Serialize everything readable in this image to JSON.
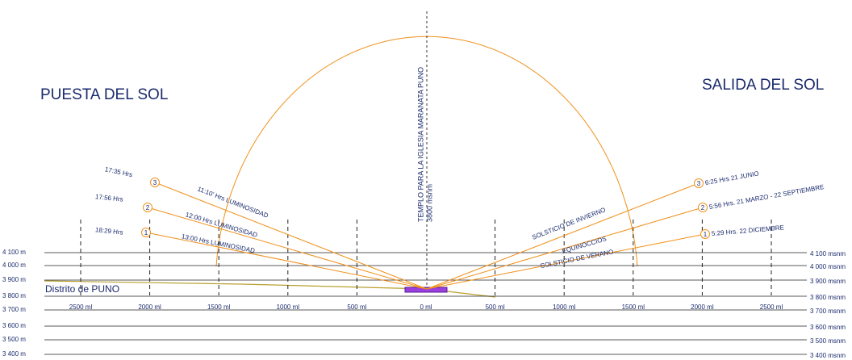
{
  "header": {
    "left_title": "PUESTA DEL SOL",
    "right_title": "SALIDA DEL SOL"
  },
  "center": {
    "label": "TEMPLO PARA LA IGLESIA MARANATA PUNO",
    "elevation": "3800 msnm"
  },
  "district": "Distrito de PUNO",
  "levels": {
    "left": [
      "4 100 m",
      "4 000 m",
      "3 900 m",
      "3 800 m",
      "3 700 m",
      "3 600 m",
      "3 500 m",
      "3 400 m"
    ],
    "right": [
      "4 100 msnm",
      "4 000 msnm",
      "3 900 msnm",
      "3 800 msnm",
      "3 700 msnm",
      "3 600 msnm",
      "3 500 msnm",
      "3 400 msnm"
    ]
  },
  "distances": [
    "2500 ml",
    "2000 ml",
    "1500 ml",
    "1000 ml",
    "500 ml",
    "0 ml",
    "500 ml",
    "1000 ml",
    "1500 ml",
    "2000 ml",
    "2500 ml"
  ],
  "sunset": [
    {
      "number": "3",
      "time": "17:35 Hrs",
      "duration": "11:10' Hrs LUMINOSIDAD"
    },
    {
      "number": "2",
      "time": "17:56 Hrs",
      "duration": "12:00 Hrs LUMINOSIDAD"
    },
    {
      "number": "1",
      "time": "18:29 Hrs",
      "duration": "13:00 Hrs LUMINOSIDAD"
    }
  ],
  "sunrise": [
    {
      "number": "3",
      "time": "6:25 Hrs 21 JUNIO",
      "name": "SOLSTICIO DE INVIERNO"
    },
    {
      "number": "2",
      "time": "5:56 Hrs.  21 MARZO - 22 SEPTIEMBRE",
      "name": "EQUINOCCIOS"
    },
    {
      "number": "1",
      "time": "5:29 Hrs. 22 DICIEMBRE",
      "name": "SOLSTICIO DE VERANO"
    }
  ]
}
